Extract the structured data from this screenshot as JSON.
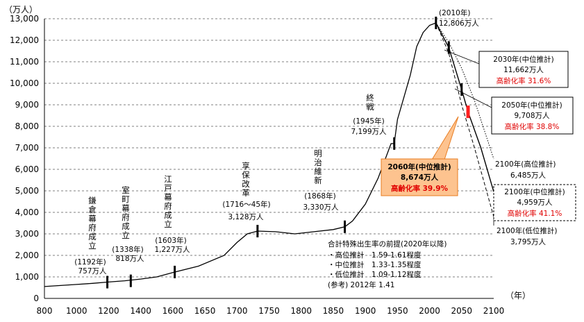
{
  "chart_data": {
    "type": "line",
    "title": "",
    "ylabel": "（万人）",
    "xlabel": "（年）",
    "xlim": [
      800,
      2100
    ],
    "ylim": [
      0,
      13000
    ],
    "x_ticks": [
      800,
      1000,
      1200,
      1400,
      1600,
      1650,
      1700,
      1750,
      1800,
      1850,
      1900,
      1950,
      2000,
      2050,
      2100
    ],
    "y_ticks": [
      {
        "value": 0,
        "label": "0"
      },
      {
        "value": 1000,
        "label": "1,000"
      },
      {
        "value": 2000,
        "label": "2,000"
      },
      {
        "value": 3000,
        "label": "3,000"
      },
      {
        "value": 4000,
        "label": "4,000"
      },
      {
        "value": 5000,
        "label": "5,000"
      },
      {
        "value": 6000,
        "label": "6,000"
      },
      {
        "value": 7000,
        "label": "7,000"
      },
      {
        "value": 8000,
        "label": "8,000"
      },
      {
        "value": 9000,
        "label": "9,000"
      },
      {
        "value": 10000,
        "label": "10,000"
      },
      {
        "value": 11000,
        "label": "11,000"
      },
      {
        "value": 12000,
        "label": "12,000"
      },
      {
        "value": 13000,
        "label": "13,000"
      }
    ],
    "historical": [
      [
        800,
        551
      ],
      [
        1000,
        650
      ],
      [
        1100,
        700
      ],
      [
        1192,
        757
      ],
      [
        1300,
        818
      ],
      [
        1400,
        900
      ],
      [
        1500,
        1000
      ],
      [
        1550,
        1100
      ],
      [
        1603,
        1227
      ],
      [
        1640,
        1500
      ],
      [
        1680,
        2000
      ],
      [
        1700,
        2600
      ],
      [
        1716,
        3000
      ],
      [
        1732,
        3128
      ],
      [
        1760,
        3100
      ],
      [
        1790,
        3000
      ],
      [
        1820,
        3100
      ],
      [
        1850,
        3200
      ],
      [
        1868,
        3330
      ],
      [
        1880,
        3600
      ],
      [
        1900,
        4385
      ],
      [
        1920,
        5596
      ],
      [
        1940,
        7193
      ],
      [
        1945,
        7199
      ],
      [
        1950,
        8320
      ],
      [
        1960,
        9342
      ],
      [
        1970,
        10372
      ],
      [
        1980,
        11706
      ],
      [
        1990,
        12361
      ],
      [
        2000,
        12693
      ],
      [
        2010,
        12806
      ]
    ],
    "projections": [
      {
        "name": "高位推計",
        "style": "dotted",
        "points": [
          [
            2010,
            12806
          ],
          [
            2030,
            11900
          ],
          [
            2050,
            10700
          ],
          [
            2070,
            9200
          ],
          [
            2100,
            6485
          ]
        ]
      },
      {
        "name": "中位推計",
        "style": "solid",
        "points": [
          [
            2010,
            12806
          ],
          [
            2030,
            11662
          ],
          [
            2050,
            9708
          ],
          [
            2060,
            8674
          ],
          [
            2080,
            7000
          ],
          [
            2100,
            4959
          ]
        ]
      },
      {
        "name": "低位推計",
        "style": "dashed",
        "points": [
          [
            2010,
            12806
          ],
          [
            2030,
            11400
          ],
          [
            2050,
            9000
          ],
          [
            2070,
            7000
          ],
          [
            2100,
            3795
          ]
        ]
      }
    ],
    "markers": [
      {
        "name": "kamakura",
        "x": 1192,
        "y": 757
      },
      {
        "name": "muromachi",
        "x": 1338,
        "y": 818
      },
      {
        "name": "edo",
        "x": 1603,
        "y": 1227
      },
      {
        "name": "kyoho",
        "x": 1732,
        "y": 3128
      },
      {
        "name": "meiji",
        "x": 1868,
        "y": 3330
      },
      {
        "name": "shusen",
        "x": 1945,
        "y": 7199
      },
      {
        "name": "peak",
        "x": 2010,
        "y": 12806
      },
      {
        "name": "2030",
        "x": 2030,
        "y": 11662
      },
      {
        "name": "2050",
        "x": 2050,
        "y": 9708
      }
    ],
    "marker_2060": {
      "x": 2060,
      "y": 8674
    }
  },
  "labels": {
    "kamakura": {
      "text": "鎌倉幕府成立",
      "year": "(1192年)",
      "pop": "757万人"
    },
    "muromachi": {
      "text": "室町幕府成立",
      "year": "(1338年)",
      "pop": "818万人"
    },
    "edo": {
      "text": "江戸幕府成立",
      "year": "(1603年)",
      "pop": "1,227万人"
    },
    "kyoho": {
      "text": "享保改革",
      "year": "(1716～45年)",
      "pop": "3,128万人"
    },
    "meiji": {
      "text": "明治維新",
      "year": "(1868年)",
      "pop": "3,330万人"
    },
    "shusen": {
      "text": "終戦",
      "year": "(1945年)",
      "pop": "7,199万人"
    },
    "peak": {
      "year": "(2010年)",
      "pop": "12,806万人"
    },
    "p2030": {
      "year": "2030年(中位推計)",
      "pop": "11,662万人",
      "aging": "高齢化率 31.6%"
    },
    "p2050": {
      "year": "2050年(中位推計)",
      "pop": "9,708万人",
      "aging": "高齢化率 38.8%"
    },
    "p2060": {
      "year": "2060年(中位推計)",
      "pop": "8,674万人",
      "aging": "高齢化率 39.9%"
    },
    "p2100h": {
      "year": "2100年(高位推計)",
      "pop": "6,485万人"
    },
    "p2100m": {
      "year": "2100年(中位推計)",
      "pop": "4,959万人",
      "aging": "高齢化率 41.1%"
    },
    "p2100l": {
      "year": "2100年(低位推計)",
      "pop": "3,795万人"
    }
  },
  "assumptions": {
    "title": "合計特殊出生率の前提(2020年以降)",
    "lines": [
      "・高位推計　1.59-1.61程度",
      "・中位推計　1.33-1.35程度",
      "・低位推計　1.09-1.12程度",
      "(参考) 2012年 1.41"
    ]
  },
  "colors": {
    "red": "#e00000",
    "orange_box": "#fdc38f",
    "orange_border": "#e87d22",
    "marker_2060": "#ff2020"
  }
}
